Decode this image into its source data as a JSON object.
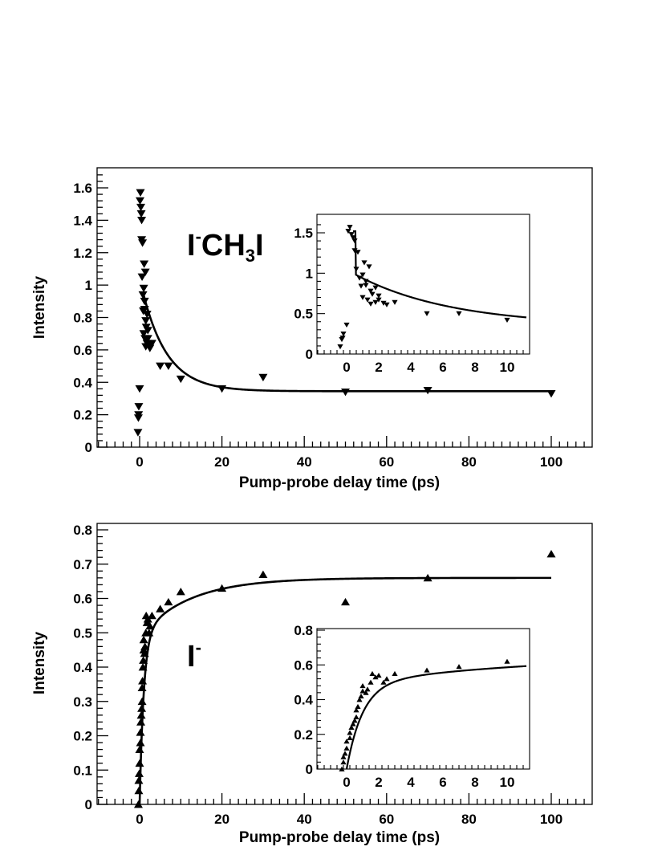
{
  "chart_data": [
    {
      "type": "scatter",
      "panel": "top",
      "label": {
        "main": "I",
        "sup": "-",
        "rest": "CH",
        "sub": "3",
        "tail": "I"
      },
      "xlabel": "Pump-probe delay time (ps)",
      "ylabel": "Intensity",
      "xlim": [
        -11,
        110
      ],
      "ylim": [
        0,
        1.7
      ],
      "xticks": [
        0,
        20,
        40,
        60,
        80,
        100
      ],
      "xtick_labels": [
        "0",
        "20",
        "40",
        "60",
        "80",
        "100"
      ],
      "yticks": [
        0,
        0.2,
        0.4,
        0.6,
        0.8,
        1,
        1.2,
        1.4,
        1.6
      ],
      "ytick_labels": [
        "0",
        "0.2",
        "0.4",
        "0.6",
        "0.8",
        "1",
        "1.2",
        "1.4",
        "1.6"
      ],
      "marker": "triangle-down",
      "grid": false,
      "legend": "none",
      "series": [
        {
          "points": [
            [
              -0.4,
              0.09
            ],
            [
              -0.3,
              0.18
            ],
            [
              -0.25,
              0.2
            ],
            [
              -0.2,
              0.25
            ],
            [
              0,
              0.36
            ],
            [
              0.1,
              1.52
            ],
            [
              0.2,
              1.57
            ],
            [
              0.3,
              1.48
            ],
            [
              0.4,
              1.44
            ],
            [
              0.5,
              1.4
            ],
            [
              0.5,
              1.28
            ],
            [
              0.6,
              1.05
            ],
            [
              0.7,
              1.26
            ],
            [
              0.8,
              0.94
            ],
            [
              0.9,
              0.84
            ],
            [
              1.0,
              0.98
            ],
            [
              1.0,
              0.7
            ],
            [
              1.1,
              1.13
            ],
            [
              1.2,
              0.9
            ],
            [
              1.2,
              0.85
            ],
            [
              1.3,
              0.67
            ],
            [
              1.4,
              1.08
            ],
            [
              1.5,
              0.78
            ],
            [
              1.5,
              0.62
            ],
            [
              1.6,
              0.74
            ],
            [
              1.8,
              0.64
            ],
            [
              1.8,
              0.82
            ],
            [
              2.0,
              0.72
            ],
            [
              2.0,
              0.67
            ],
            [
              2.3,
              0.63
            ],
            [
              2.5,
              0.61
            ],
            [
              3.0,
              0.64
            ],
            [
              5.0,
              0.5
            ],
            [
              7.0,
              0.5
            ],
            [
              10.0,
              0.42
            ],
            [
              20.0,
              0.36
            ],
            [
              30.0,
              0.43
            ],
            [
              50.0,
              0.34
            ],
            [
              70.0,
              0.35
            ],
            [
              100.0,
              0.33
            ]
          ]
        }
      ],
      "fit": {
        "type": "line",
        "x_range": [
          1,
          100
        ],
        "params": {
          "y_inf": 0.345,
          "a": 0.7,
          "tau": 6.0,
          "rise_tau": 0.25
        }
      },
      "inset": {
        "xlim": [
          -2,
          11.2
        ],
        "ylim": [
          0,
          1.65
        ],
        "xticks": [
          0,
          2,
          4,
          6,
          8,
          10
        ],
        "xtick_labels": [
          "0",
          "2",
          "4",
          "6",
          "8",
          "10"
        ],
        "yticks": [
          0,
          0.5,
          1,
          1.5
        ],
        "ytick_labels": [
          "0",
          "0.5",
          "1",
          "1.5"
        ]
      }
    },
    {
      "type": "scatter",
      "panel": "bottom",
      "label": {
        "main": "I",
        "sup": "-"
      },
      "xlabel": "Pump-probe delay time (ps)",
      "ylabel": "Intensity",
      "xlim": [
        -11,
        110
      ],
      "ylim": [
        0,
        0.82
      ],
      "xticks": [
        0,
        20,
        40,
        60,
        80,
        100
      ],
      "xtick_labels": [
        "0",
        "20",
        "40",
        "60",
        "80",
        "100"
      ],
      "yticks": [
        0,
        0.1,
        0.2,
        0.3,
        0.4,
        0.5,
        0.6,
        0.7,
        0.8
      ],
      "ytick_labels": [
        "0",
        "0.1",
        "0.2",
        "0.3",
        "0.4",
        "0.5",
        "0.6",
        "0.7",
        "0.8"
      ],
      "marker": "triangle-up",
      "grid": false,
      "legend": "none",
      "series": [
        {
          "points": [
            [
              -0.3,
              0.0
            ],
            [
              -0.2,
              0.04
            ],
            [
              -0.2,
              0.07
            ],
            [
              -0.1,
              0.09
            ],
            [
              0.0,
              0.12
            ],
            [
              0.0,
              0.16
            ],
            [
              0.2,
              0.18
            ],
            [
              0.2,
              0.21
            ],
            [
              0.3,
              0.24
            ],
            [
              0.4,
              0.26
            ],
            [
              0.5,
              0.28
            ],
            [
              0.6,
              0.3
            ],
            [
              0.6,
              0.34
            ],
            [
              0.7,
              0.36
            ],
            [
              0.8,
              0.4
            ],
            [
              0.9,
              0.42
            ],
            [
              1.0,
              0.45
            ],
            [
              1.0,
              0.48
            ],
            [
              1.2,
              0.44
            ],
            [
              1.3,
              0.46
            ],
            [
              1.5,
              0.5
            ],
            [
              1.6,
              0.55
            ],
            [
              1.8,
              0.53
            ],
            [
              2.0,
              0.54
            ],
            [
              2.3,
              0.5
            ],
            [
              2.5,
              0.52
            ],
            [
              3.0,
              0.55
            ],
            [
              5.0,
              0.57
            ],
            [
              7.0,
              0.59
            ],
            [
              10.0,
              0.62
            ],
            [
              20.0,
              0.63
            ],
            [
              30.0,
              0.67
            ],
            [
              50.0,
              0.59
            ],
            [
              70.0,
              0.66
            ],
            [
              100.0,
              0.73
            ]
          ]
        }
      ],
      "fit": {
        "type": "line",
        "x_range": [
          0,
          100
        ],
        "params": {
          "t0": 0.0,
          "a": 0.49,
          "tau1": 1.0,
          "b": 0.17,
          "tau2": 12.0
        }
      },
      "inset": {
        "xlim": [
          -2,
          11.2
        ],
        "ylim": [
          0,
          0.8
        ],
        "xticks": [
          0,
          2,
          4,
          6,
          8,
          10
        ],
        "xtick_labels": [
          "0",
          "2",
          "4",
          "6",
          "8",
          "10"
        ],
        "yticks": [
          0,
          0.2,
          0.4,
          0.6,
          0.8
        ],
        "ytick_labels": [
          "0",
          "0.2",
          "0.4",
          "0.6",
          "0.8"
        ]
      }
    }
  ]
}
